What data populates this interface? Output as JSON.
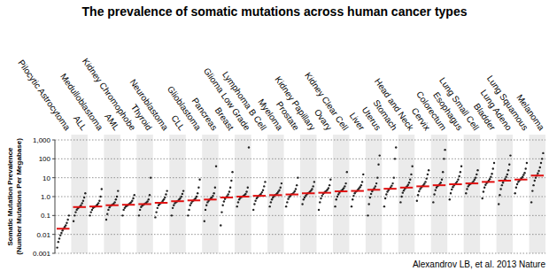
{
  "chart_data": {
    "type": "scatter",
    "title": "The prevalence of somatic mutations across human cancer types",
    "ylabel": [
      "Somatic Mutation Prevalence",
      "(Number Mutations Per Megabase)"
    ],
    "annotation": "Alexandrov LB, et al. 2013 Nature",
    "log": "y",
    "grid": true,
    "color": "#222222",
    "ylim": [
      0.001,
      1000
    ],
    "yticks": [
      0.001,
      0.01,
      0.1,
      {
        "value": 1,
        "label": "1.0"
      },
      10,
      100,
      {
        "value": 1000,
        "label": "1,000"
      }
    ],
    "categories": [
      "Pilocytic Astrocytoma",
      "ALL",
      "Medulloblastoma",
      "AML",
      "Kidney Chromophobe",
      "Thyroid",
      "Neuroblastoma",
      "CLL",
      "Glioblastoma",
      "Pancreas",
      "Breast",
      "Glioma Low Grade",
      "Lymphoma B Cell",
      "Myeloma",
      "Prostate",
      "Kidney Papillary",
      "Ovary",
      "Kidney Clear Cell",
      "Liver",
      "Uterus",
      "Stomach",
      "Head and Neck",
      "Cervix",
      "Colorectum",
      "Esophagus",
      "Lung Small Cell",
      "Bladder",
      "Lung Adeno",
      "Lung Squamous",
      "Melanoma"
    ],
    "values": [
      0.02,
      0.28,
      0.3,
      0.35,
      0.37,
      0.4,
      0.47,
      0.57,
      0.63,
      0.7,
      0.9,
      1.0,
      1.1,
      1.2,
      1.3,
      1.5,
      1.6,
      1.9,
      2.0,
      2.3,
      2.6,
      3.0,
      3.5,
      4.0,
      4.5,
      5.0,
      6.0,
      7.0,
      8.0,
      13
    ],
    "samples": [
      [
        0.002,
        0.004,
        0.006,
        0.009,
        0.012,
        0.016,
        0.02,
        0.025,
        0.03,
        0.04,
        0.06,
        0.1
      ],
      [
        0.05,
        0.1,
        0.15,
        0.2,
        0.24,
        0.27,
        0.3,
        0.35,
        0.45,
        0.6,
        0.9,
        1.5
      ],
      [
        0.1,
        0.15,
        0.2,
        0.25,
        0.28,
        0.3,
        0.33,
        0.38,
        0.45,
        0.6,
        1.0,
        2.5
      ],
      [
        0.06,
        0.12,
        0.2,
        0.27,
        0.32,
        0.35,
        0.38,
        0.42,
        0.5,
        0.7,
        1.0,
        2.0
      ],
      [
        0.1,
        0.2,
        0.25,
        0.3,
        0.33,
        0.36,
        0.4,
        0.45,
        0.5,
        0.6,
        0.8,
        1.2
      ],
      [
        0.1,
        0.2,
        0.28,
        0.33,
        0.37,
        0.4,
        0.43,
        0.48,
        0.55,
        0.7,
        1.2,
        10
      ],
      [
        0.08,
        0.15,
        0.25,
        0.35,
        0.4,
        0.45,
        0.5,
        0.6,
        0.7,
        0.9,
        1.3,
        2.0
      ],
      [
        0.1,
        0.25,
        0.35,
        0.45,
        0.5,
        0.55,
        0.6,
        0.7,
        0.8,
        1.0,
        1.4,
        2.0
      ],
      [
        0.1,
        0.2,
        0.35,
        0.45,
        0.55,
        0.62,
        0.7,
        0.8,
        1.0,
        1.5,
        3,
        8
      ],
      [
        0.05,
        0.2,
        0.35,
        0.5,
        0.6,
        0.7,
        0.8,
        0.9,
        1.1,
        1.5,
        3,
        40
      ],
      [
        0.03,
        0.15,
        0.35,
        0.55,
        0.75,
        0.9,
        1.05,
        1.3,
        1.8,
        3,
        7,
        20
      ],
      [
        0.3,
        0.5,
        0.7,
        0.85,
        0.95,
        1.0,
        1.1,
        1.2,
        1.4,
        1.8,
        3,
        400
      ],
      [
        0.2,
        0.4,
        0.6,
        0.8,
        0.95,
        1.1,
        1.2,
        1.4,
        1.7,
        2.2,
        3.5,
        6
      ],
      [
        0.3,
        0.5,
        0.7,
        0.9,
        1.05,
        1.2,
        1.3,
        1.5,
        1.8,
        2.2,
        3,
        5
      ],
      [
        0.3,
        0.5,
        0.75,
        0.95,
        1.1,
        1.3,
        1.4,
        1.6,
        1.9,
        2.5,
        4,
        10
      ],
      [
        0.4,
        0.7,
        0.9,
        1.1,
        1.3,
        1.5,
        1.6,
        1.8,
        2.1,
        2.5,
        3.5,
        6
      ],
      [
        0.2,
        0.5,
        0.8,
        1.1,
        1.4,
        1.6,
        1.8,
        2.0,
        2.3,
        2.8,
        4,
        8
      ],
      [
        0.3,
        0.7,
        1.0,
        1.3,
        1.6,
        1.9,
        2.1,
        2.4,
        2.8,
        3.5,
        5,
        20
      ],
      [
        0.3,
        0.7,
        1.1,
        1.5,
        1.8,
        2.0,
        2.3,
        2.7,
        3.2,
        4,
        6,
        15
      ],
      [
        0.1,
        0.4,
        0.9,
        1.4,
        1.9,
        2.3,
        2.8,
        3.5,
        5,
        10,
        50,
        150
      ],
      [
        0.3,
        0.8,
        1.3,
        1.8,
        2.2,
        2.6,
        3.1,
        3.8,
        5,
        10,
        100,
        400
      ],
      [
        0.5,
        1.0,
        1.6,
        2.1,
        2.6,
        3.0,
        3.5,
        4.2,
        5.5,
        8,
        15,
        40
      ],
      [
        0.6,
        1.2,
        1.9,
        2.5,
        3.0,
        3.5,
        4.0,
        4.8,
        6,
        9,
        15,
        25
      ],
      [
        0.5,
        1.3,
        2.2,
        3,
        3.6,
        4,
        4.6,
        5.5,
        8,
        20,
        100,
        300
      ],
      [
        0.7,
        1.5,
        2.4,
        3.2,
        3.9,
        4.5,
        5.2,
        6.2,
        8,
        12,
        20,
        40
      ],
      [
        1.5,
        2.5,
        3.5,
        4.2,
        4.7,
        5.0,
        5.5,
        6.5,
        8,
        10,
        15,
        25
      ],
      [
        0.8,
        1.8,
        3,
        4.2,
        5.2,
        6,
        7,
        8.5,
        11,
        16,
        30,
        60
      ],
      [
        0.4,
        1.2,
        2.5,
        4,
        5.5,
        7,
        8.5,
        11,
        15,
        25,
        50,
        150
      ],
      [
        1.5,
        3,
        4.5,
        6,
        7,
        8,
        9.5,
        11,
        14,
        18,
        30,
        60
      ],
      [
        0.5,
        2,
        4,
        7,
        10,
        13,
        17,
        23,
        35,
        60,
        100,
        200
      ]
    ]
  }
}
